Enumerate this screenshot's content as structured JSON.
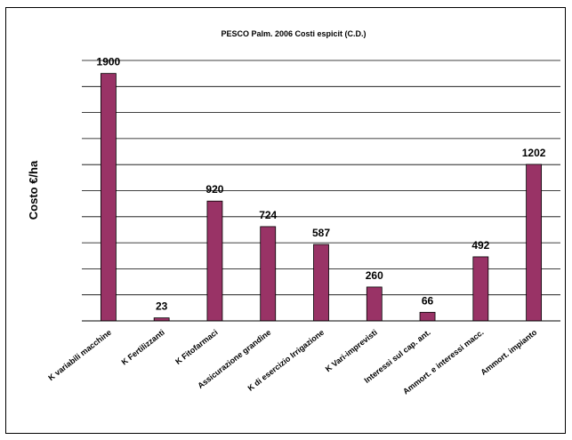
{
  "chart_data": {
    "type": "bar",
    "title": "PESCO Palm.  2006  Costi espicit (C.D.)",
    "ylabel": "Costo  €/ha",
    "xlabel": "",
    "categories": [
      "K variabili macchine",
      "K  Fertilizzanti",
      "K Fitofarmaci",
      "Assicurazione grandine",
      "K di esercizio Irrigazione",
      "K Vari-imprevisti",
      "Interessi sul cap. ant.",
      "Ammort. e interessi macc.",
      "Ammort. impianto"
    ],
    "values": [
      1900,
      23,
      920,
      724,
      587,
      260,
      66,
      492,
      1202
    ],
    "data_labels": [
      "1900",
      "23",
      "920",
      "724",
      "587",
      "260",
      "66",
      "492",
      "1202"
    ],
    "ylim": [
      0,
      2000
    ],
    "grid": true,
    "legend": "none",
    "bar_color": "#993366"
  }
}
